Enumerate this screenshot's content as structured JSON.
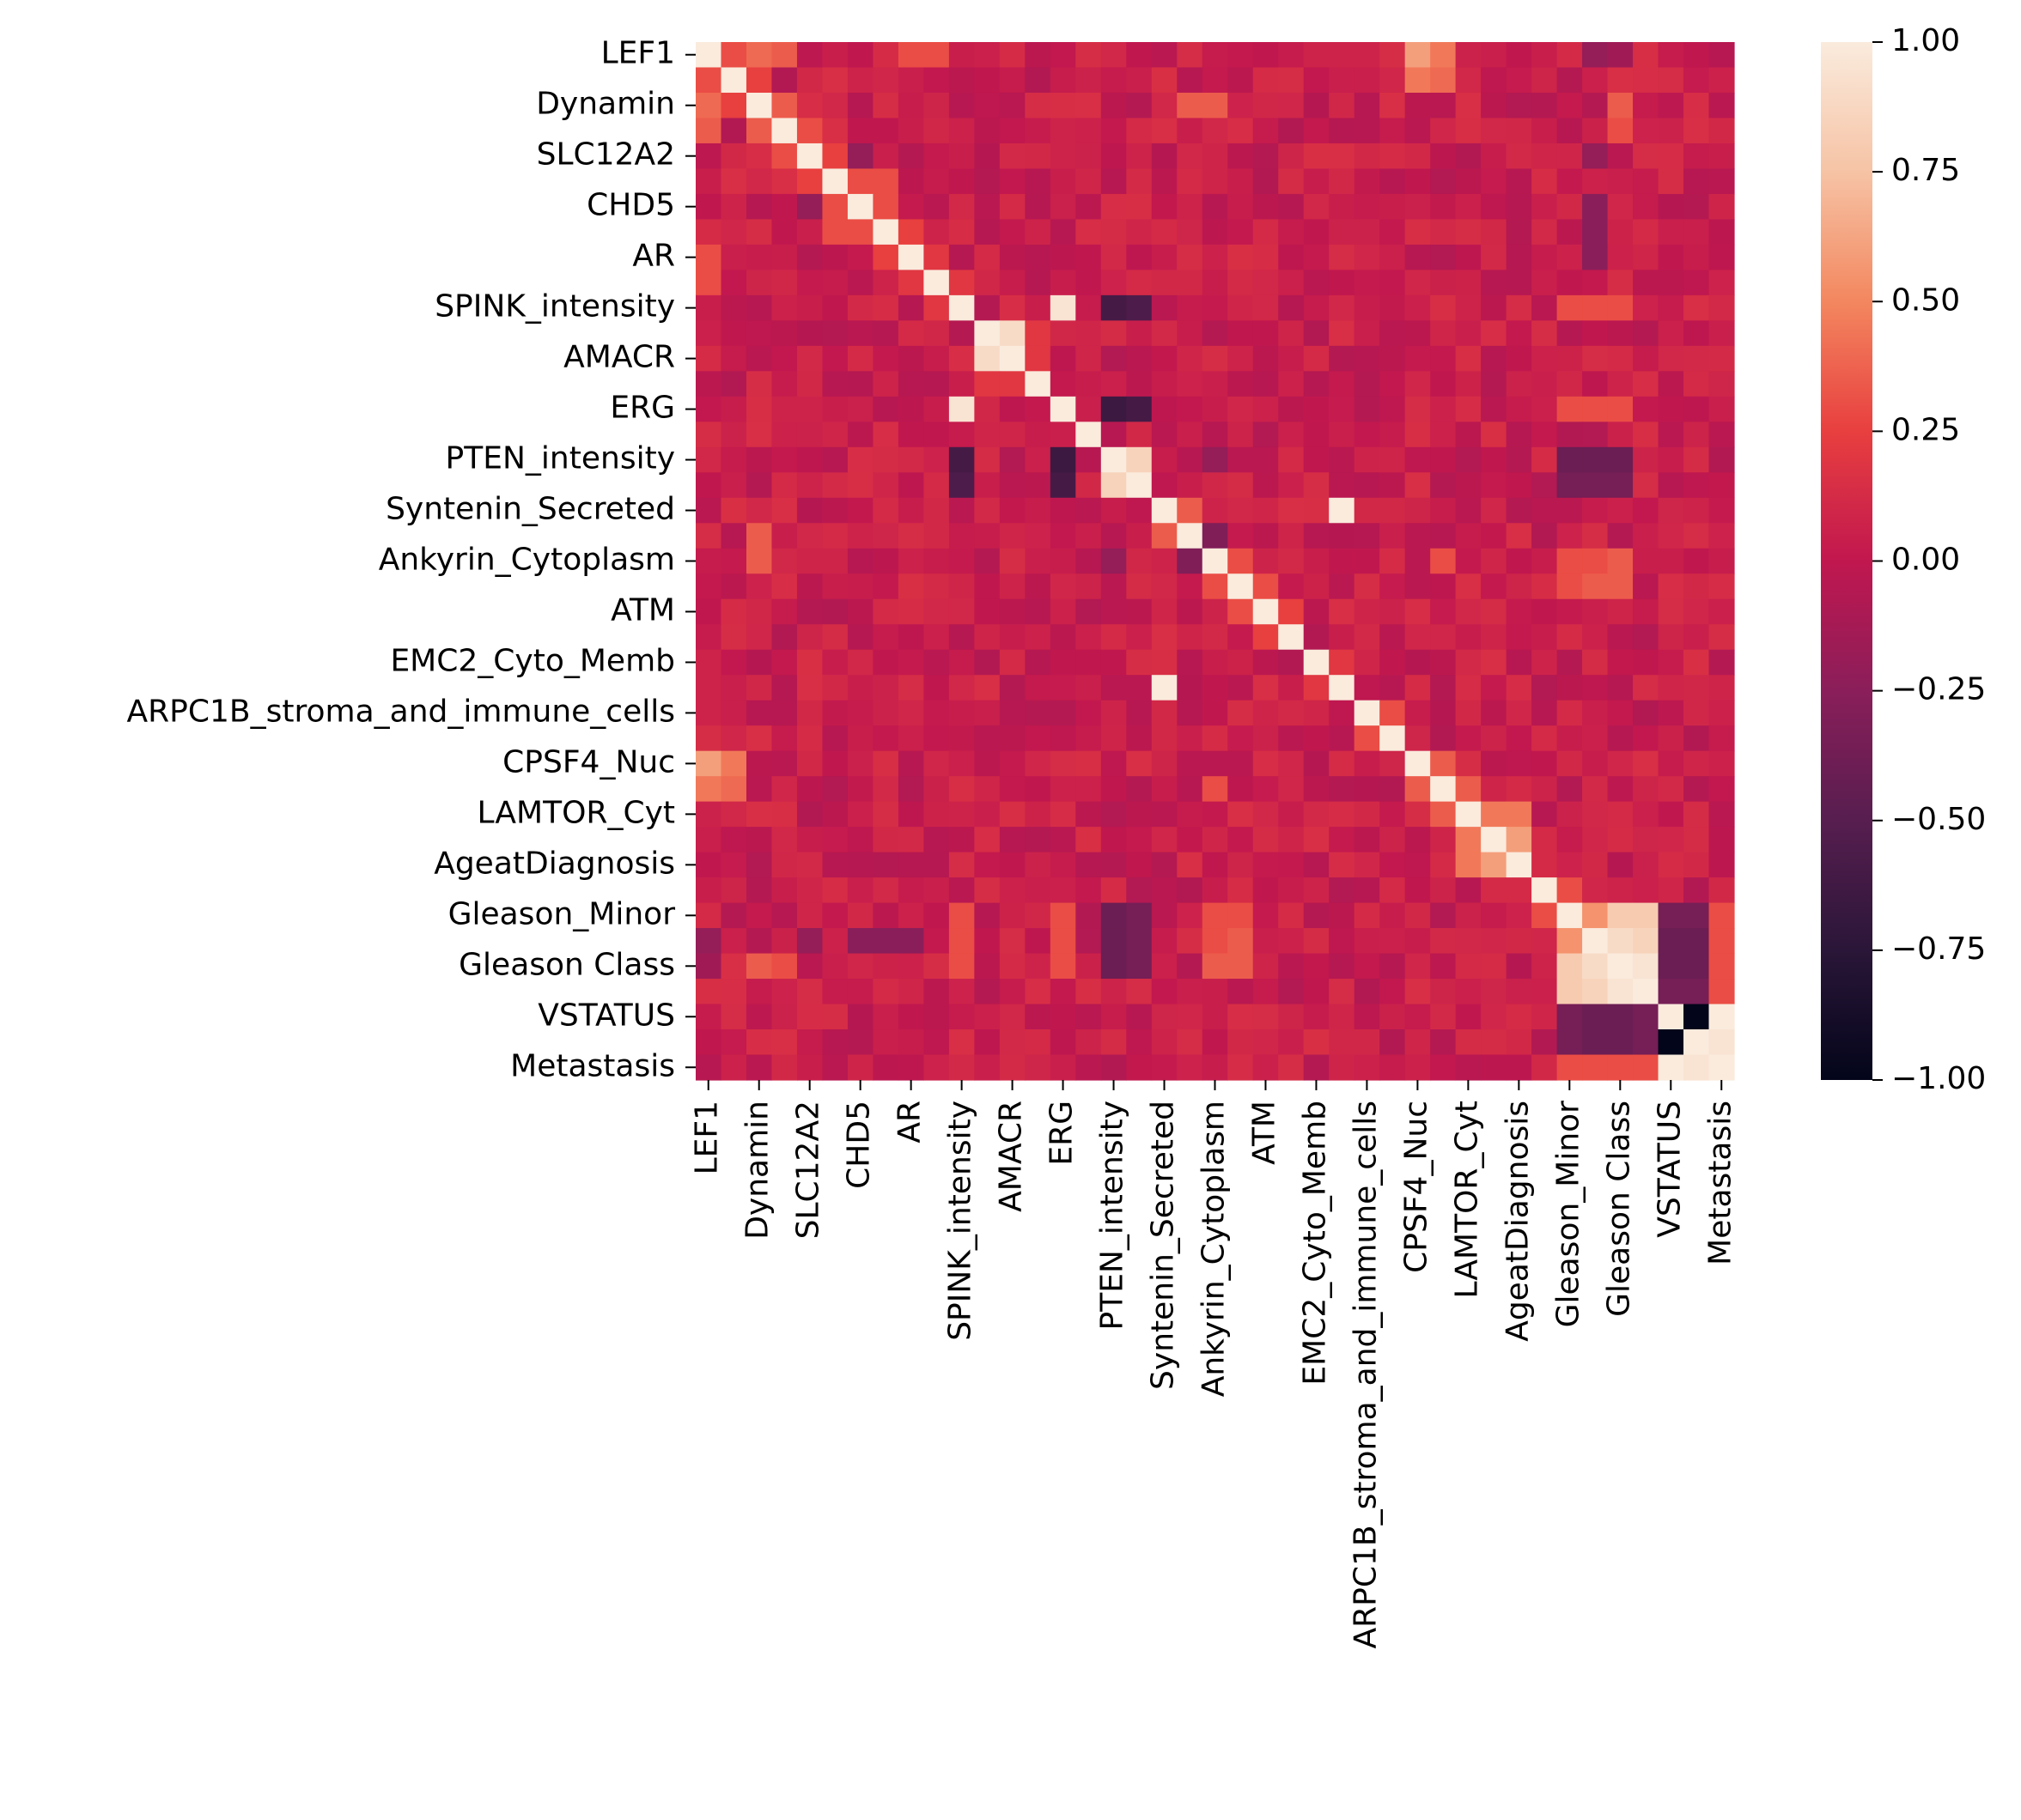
{
  "chart_data": {
    "type": "heatmap",
    "title": "",
    "xlabel": "",
    "ylabel": "",
    "colormap": "rocket",
    "vmin": -1.0,
    "vmax": 1.0,
    "colorbar": {
      "ticks": [
        1.0,
        0.75,
        0.5,
        0.25,
        0.0,
        -0.25,
        -0.5,
        -0.75,
        -1.0
      ],
      "tick_labels": [
        "1.00",
        "0.75",
        "0.50",
        "0.25",
        "0.00",
        "−0.25",
        "−0.50",
        "−0.75",
        "−1.00"
      ]
    },
    "variables_count": 41,
    "tick_labels": [
      "LEF1",
      "Dynamin",
      "SLC12A2",
      "CHD5",
      "AR",
      "SPINK_intensity",
      "AMACR",
      "ERG",
      "PTEN_intensity",
      "Syntenin_Secreted",
      "Ankyrin_Cytoplasm",
      "ATM",
      "EMC2_Cyto_Memb",
      "ARPC1B_stroma_and_immune_cells",
      "CPSF4_Nuc",
      "LAMTOR_Cyt",
      "AgeatDiagnosis",
      "Gleason_Minor",
      "Gleason Class",
      "VSTATUS",
      "Metastasis"
    ],
    "tick_label_positions": [
      0,
      2,
      4,
      6,
      8,
      10,
      12,
      14,
      16,
      18,
      20,
      22,
      24,
      26,
      28,
      30,
      32,
      34,
      36,
      38,
      40
    ],
    "base_value": 0.04,
    "correlations": [
      {
        "r": 0,
        "c": 1,
        "v": 0.3
      },
      {
        "r": 0,
        "c": 2,
        "v": 0.4
      },
      {
        "r": 0,
        "c": 3,
        "v": 0.35
      },
      {
        "r": 0,
        "c": 8,
        "v": 0.3
      },
      {
        "r": 0,
        "c": 9,
        "v": 0.3
      },
      {
        "r": 0,
        "c": 28,
        "v": 0.6
      },
      {
        "r": 0,
        "c": 29,
        "v": 0.45
      },
      {
        "r": 0,
        "c": 35,
        "v": -0.2
      },
      {
        "r": 0,
        "c": 36,
        "v": -0.15
      },
      {
        "r": 1,
        "c": 2,
        "v": 0.25
      },
      {
        "r": 1,
        "c": 28,
        "v": 0.45
      },
      {
        "r": 1,
        "c": 29,
        "v": 0.4
      },
      {
        "r": 2,
        "c": 3,
        "v": 0.35
      },
      {
        "r": 2,
        "c": 19,
        "v": 0.35
      },
      {
        "r": 2,
        "c": 20,
        "v": 0.35
      },
      {
        "r": 3,
        "c": 4,
        "v": 0.3
      },
      {
        "r": 4,
        "c": 5,
        "v": 0.25
      },
      {
        "r": 4,
        "c": 6,
        "v": -0.2
      },
      {
        "r": 5,
        "c": 6,
        "v": 0.3
      },
      {
        "r": 5,
        "c": 7,
        "v": 0.3
      },
      {
        "r": 6,
        "c": 7,
        "v": 0.3
      },
      {
        "r": 7,
        "c": 8,
        "v": 0.25
      },
      {
        "r": 8,
        "c": 9,
        "v": 0.2
      },
      {
        "r": 9,
        "c": 10,
        "v": 0.2
      },
      {
        "r": 10,
        "c": 14,
        "v": 0.95
      },
      {
        "r": 10,
        "c": 16,
        "v": -0.6
      },
      {
        "r": 10,
        "c": 17,
        "v": -0.55
      },
      {
        "r": 10,
        "c": 34,
        "v": 0.3
      },
      {
        "r": 10,
        "c": 35,
        "v": 0.3
      },
      {
        "r": 10,
        "c": 36,
        "v": 0.3
      },
      {
        "r": 11,
        "c": 12,
        "v": 0.9
      },
      {
        "r": 11,
        "c": 13,
        "v": 0.2
      },
      {
        "r": 12,
        "c": 13,
        "v": 0.2
      },
      {
        "r": 14,
        "c": 16,
        "v": -0.65
      },
      {
        "r": 14,
        "c": 17,
        "v": -0.6
      },
      {
        "r": 14,
        "c": 34,
        "v": 0.3
      },
      {
        "r": 14,
        "c": 35,
        "v": 0.3
      },
      {
        "r": 14,
        "c": 36,
        "v": 0.3
      },
      {
        "r": 16,
        "c": 17,
        "v": 0.85
      },
      {
        "r": 16,
        "c": 34,
        "v": -0.4
      },
      {
        "r": 16,
        "c": 35,
        "v": -0.4
      },
      {
        "r": 16,
        "c": 36,
        "v": -0.4
      },
      {
        "r": 17,
        "c": 34,
        "v": -0.35
      },
      {
        "r": 17,
        "c": 35,
        "v": -0.35
      },
      {
        "r": 17,
        "c": 36,
        "v": -0.35
      },
      {
        "r": 18,
        "c": 19,
        "v": 0.35
      },
      {
        "r": 18,
        "c": 25,
        "v": 1.0
      },
      {
        "r": 19,
        "c": 20,
        "v": -0.3
      },
      {
        "r": 20,
        "c": 21,
        "v": 0.3
      },
      {
        "r": 20,
        "c": 34,
        "v": 0.3
      },
      {
        "r": 20,
        "c": 35,
        "v": 0.3
      },
      {
        "r": 20,
        "c": 36,
        "v": 0.35
      },
      {
        "r": 21,
        "c": 22,
        "v": 0.3
      },
      {
        "r": 21,
        "c": 34,
        "v": 0.3
      },
      {
        "r": 21,
        "c": 35,
        "v": 0.35
      },
      {
        "r": 21,
        "c": 36,
        "v": 0.35
      },
      {
        "r": 22,
        "c": 23,
        "v": 0.25
      },
      {
        "r": 24,
        "c": 25,
        "v": 0.2
      },
      {
        "r": 26,
        "c": 27,
        "v": 0.3
      },
      {
        "r": 28,
        "c": 29,
        "v": 0.35
      },
      {
        "r": 29,
        "c": 30,
        "v": 0.35
      },
      {
        "r": 30,
        "c": 31,
        "v": 0.45
      },
      {
        "r": 30,
        "c": 32,
        "v": 0.45
      },
      {
        "r": 31,
        "c": 32,
        "v": 0.6
      },
      {
        "r": 33,
        "c": 34,
        "v": 0.3
      },
      {
        "r": 34,
        "c": 35,
        "v": 0.55
      },
      {
        "r": 34,
        "c": 36,
        "v": 0.8
      },
      {
        "r": 34,
        "c": 37,
        "v": 0.8
      },
      {
        "r": 35,
        "c": 36,
        "v": 0.9
      },
      {
        "r": 35,
        "c": 37,
        "v": 0.85
      },
      {
        "r": 36,
        "c": 37,
        "v": 0.95
      },
      {
        "r": 34,
        "c": 38,
        "v": -0.35
      },
      {
        "r": 34,
        "c": 39,
        "v": -0.35
      },
      {
        "r": 35,
        "c": 38,
        "v": -0.4
      },
      {
        "r": 35,
        "c": 39,
        "v": -0.4
      },
      {
        "r": 36,
        "c": 38,
        "v": -0.4
      },
      {
        "r": 36,
        "c": 39,
        "v": -0.4
      },
      {
        "r": 37,
        "c": 38,
        "v": -0.35
      },
      {
        "r": 37,
        "c": 39,
        "v": -0.35
      },
      {
        "r": 38,
        "c": 39,
        "v": -1.0
      },
      {
        "r": 38,
        "c": 40,
        "v": 1.0
      },
      {
        "r": 39,
        "c": 40,
        "v": 0.95
      },
      {
        "r": 34,
        "c": 40,
        "v": 0.3
      },
      {
        "r": 35,
        "c": 40,
        "v": 0.3
      },
      {
        "r": 36,
        "c": 40,
        "v": 0.3
      },
      {
        "r": 37,
        "c": 40,
        "v": 0.3
      },
      {
        "r": 2,
        "c": 36,
        "v": 0.35
      },
      {
        "r": 3,
        "c": 36,
        "v": 0.3
      },
      {
        "r": 4,
        "c": 35,
        "v": -0.2
      },
      {
        "r": 6,
        "c": 35,
        "v": -0.25
      },
      {
        "r": 7,
        "c": 35,
        "v": -0.25
      },
      {
        "r": 8,
        "c": 35,
        "v": -0.25
      },
      {
        "r": 16,
        "c": 20,
        "v": -0.2
      },
      {
        "r": 20,
        "c": 29,
        "v": 0.3
      }
    ]
  }
}
